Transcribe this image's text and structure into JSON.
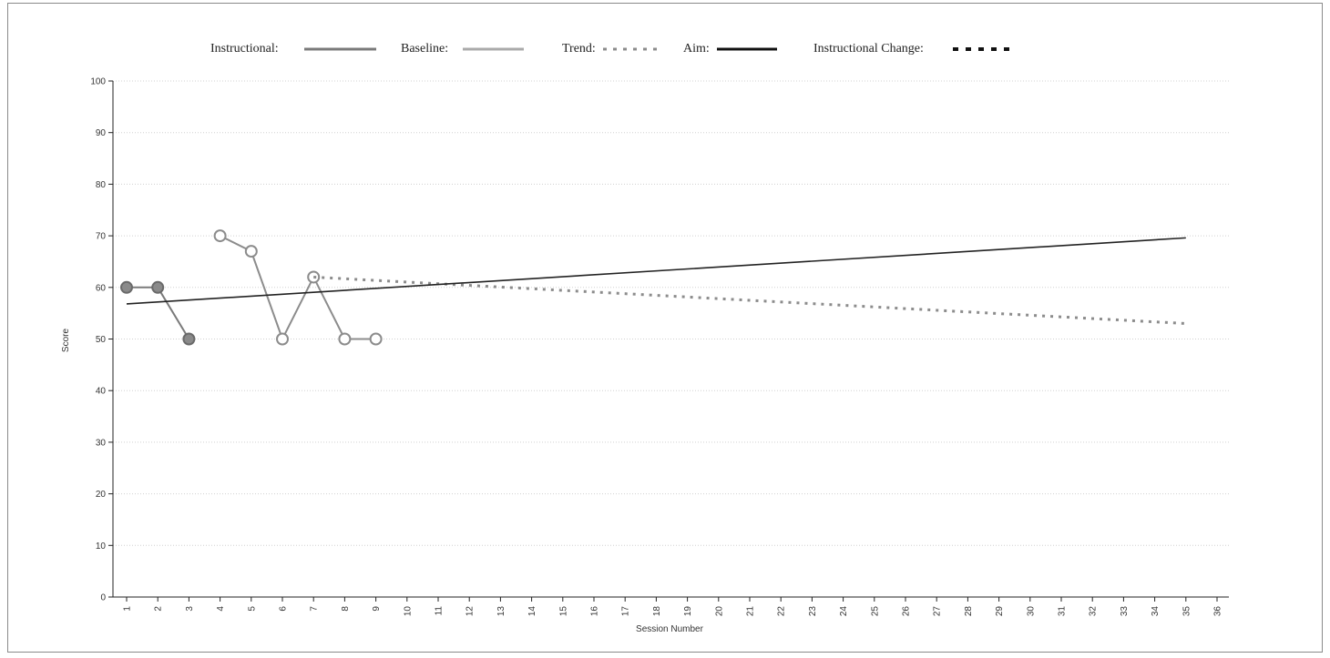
{
  "chart_data": {
    "type": "line",
    "title": "",
    "xlabel": "Session Number",
    "ylabel": "Score",
    "xlim": [
      1,
      36
    ],
    "ylim": [
      0,
      100
    ],
    "x_ticks": [
      1,
      2,
      3,
      4,
      5,
      6,
      7,
      8,
      9,
      10,
      11,
      12,
      13,
      14,
      15,
      16,
      17,
      18,
      19,
      20,
      21,
      22,
      23,
      24,
      25,
      26,
      27,
      28,
      29,
      30,
      31,
      32,
      33,
      34,
      35,
      36
    ],
    "y_ticks": [
      0,
      10,
      20,
      30,
      40,
      50,
      60,
      70,
      80,
      90,
      100
    ],
    "grid": "horizontal dotted",
    "legend": {
      "placement": "top",
      "entries": [
        {
          "label": "Instructional:",
          "style": "solid-gray"
        },
        {
          "label": "Baseline:",
          "style": "solid-light-gray"
        },
        {
          "label": "Trend:",
          "style": "dotted-gray"
        },
        {
          "label": "Aim:",
          "style": "solid-black"
        },
        {
          "label": "Instructional Change:",
          "style": "dashed-black"
        }
      ]
    },
    "series": [
      {
        "name": "Instructional",
        "marker": "filled",
        "color": "#7a7a7a",
        "x": [
          1,
          2,
          3
        ],
        "y": [
          60,
          60,
          50
        ]
      },
      {
        "name": "Baseline",
        "marker": "open",
        "color": "#8c8c8c",
        "x": [
          4,
          5,
          6,
          7,
          8,
          9
        ],
        "y": [
          70,
          67,
          50,
          62,
          50,
          50
        ]
      },
      {
        "name": "Trend",
        "style": "dotted",
        "color": "#8c8c8c",
        "x": [
          7,
          35
        ],
        "y": [
          62,
          53
        ]
      },
      {
        "name": "Aim",
        "style": "solid",
        "color": "#222222",
        "x": [
          1,
          35
        ],
        "y": [
          56.8,
          69.6
        ]
      }
    ]
  }
}
